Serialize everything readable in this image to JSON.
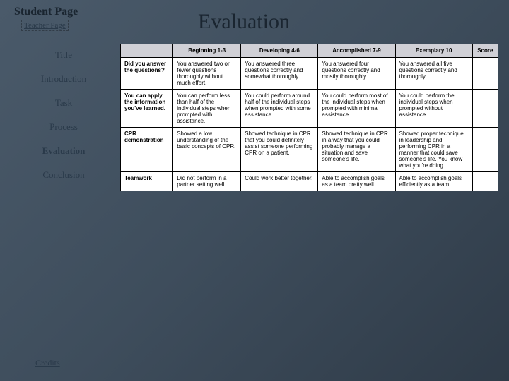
{
  "pageLabel": "Student Page",
  "teacherLink": "Teacher Page",
  "title": "Evaluation",
  "sidebar": {
    "items": [
      {
        "label": "Title"
      },
      {
        "label": "Introduction"
      },
      {
        "label": "Task"
      },
      {
        "label": "Process"
      },
      {
        "label": "Evaluation"
      },
      {
        "label": "Conclusion"
      }
    ]
  },
  "credits": "Credits",
  "rubric": {
    "headers": {
      "criteria": "",
      "beginning": "Beginning\n1-3",
      "developing": "Developing\n4-6",
      "accomplished": "Accomplished\n7-9",
      "exemplary": "Exemplary\n10",
      "score": "Score"
    },
    "rows": [
      {
        "criteria": "Did you answer the questions?",
        "beginning": "You answered two or fewer questions thoroughly without much effort.",
        "developing": "You answered three questions correctly and somewhat thoroughly.",
        "accomplished": "You answered four questions correctly and mostly thoroughly.",
        "exemplary": "You answered all five questions correctly and thoroughly."
      },
      {
        "criteria": "You can apply the information you've learned.",
        "beginning": "You can perform less than half of the individual steps when prompted with assistance.",
        "developing": "You could perform around half of the individual steps when prompted with some assistance.",
        "accomplished": "You could perform most of the individual steps when prompted with minimal assistance.",
        "exemplary": "You could perform the individual steps when prompted without assistance."
      },
      {
        "criteria": "CPR demonstration",
        "beginning": "Showed a low understanding of the basic concepts of CPR.",
        "developing": "Showed technique in CPR that you could definitely assist someone performing CPR on a patient.",
        "accomplished": "Showed technique in CPR in a way that you could probably manage a situation and save someone's life.",
        "exemplary": "Showed proper technique in leadership and performing CPR in a manner that could save someone's life. You know what you're doing."
      },
      {
        "criteria": "Teamwork",
        "beginning": "Did not perform in a partner setting well.",
        "developing": "Could work better together.",
        "accomplished": "Able to accomplish goals as a team pretty well.",
        "exemplary": "Able to accomplish goals efficiently as a team."
      }
    ]
  }
}
